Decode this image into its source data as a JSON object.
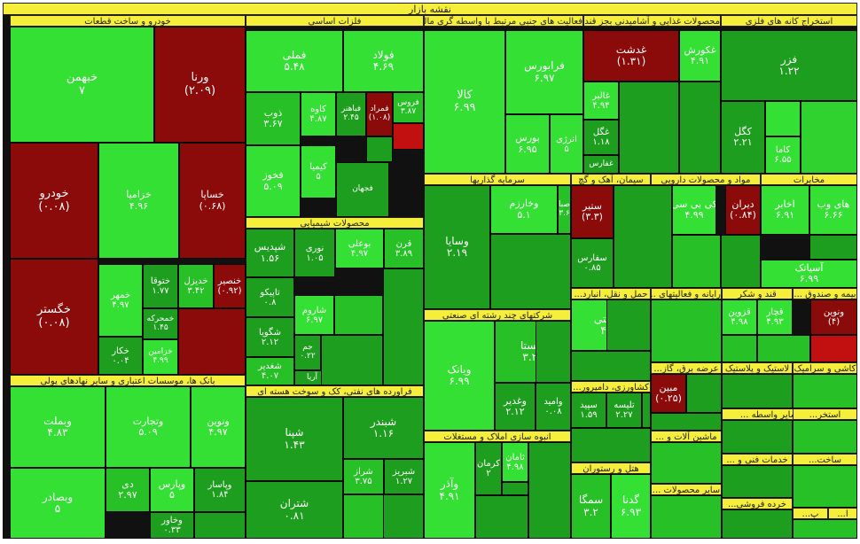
{
  "title": "نقشه بازار",
  "colors": {
    "strong_up": "#35e035",
    "up": "#1e9e1e",
    "mid_up": "#27c027",
    "down": "#8b0a0a",
    "header": "#f5ee3a"
  },
  "chart_data": {
    "type": "treemap",
    "title": "نقشه بازار",
    "sectors": [
      {
        "name": "خودرو و ساخت قطعات"
      },
      {
        "name": "فلزات اساسی"
      },
      {
        "name": "فعالیت های جنبی مرتبط با واسطه گری مالی"
      },
      {
        "name": "محصولات غذایی و آشامیدنی بجز قند..."
      },
      {
        "name": "استخراج کانه های فلزی"
      },
      {
        "name": "محصولات شیمیایی"
      },
      {
        "name": "سرمایه گذاریها"
      },
      {
        "name": "سیمان، آهک و گچ"
      },
      {
        "name": "مواد و محصولات دارویی"
      },
      {
        "name": "مخابرات"
      },
      {
        "name": "بانک ها، موسسات اعتباری و سایر نهادهای پولی"
      },
      {
        "name": "فراورده های نفتی، کک و سوخت هسته ای"
      },
      {
        "name": "شرکتهای چند رشته ای صنعتی"
      },
      {
        "name": "انبوه سازی املاک و مستغلات"
      },
      {
        "name": "حمل و نقل، انبارد..."
      },
      {
        "name": "رایانه و فعالیتهای ..."
      },
      {
        "name": "قند و شکر"
      },
      {
        "name": "بیمه و صندوق ..."
      },
      {
        "name": "عرضه برق، گاز..."
      },
      {
        "name": "لاستیک و پلاستیک"
      },
      {
        "name": "کاشی و سرامیک"
      },
      {
        "name": "کشاورزی، دامپرور..."
      },
      {
        "name": "ماشین آلات و ..."
      },
      {
        "name": "هتل و رستوران"
      },
      {
        "name": "سایر محصولات ..."
      },
      {
        "name": "ماشین آ... سایر واسطه ..."
      },
      {
        "name": "استخر..."
      },
      {
        "name": "خدمات فنی و ..."
      },
      {
        "name": "ساخت..."
      },
      {
        "name": "خرده فروشی..."
      },
      {
        "name": "پ..."
      },
      {
        "name": "ا..."
      }
    ],
    "tiles": [
      {
        "name": "خبهمن",
        "value": "۷"
      },
      {
        "name": "ورنا",
        "value": "(۲.۰۹)"
      },
      {
        "name": "خودرو",
        "value": "(۰.۰۸)"
      },
      {
        "name": "خزامیا",
        "value": "۴.۹۶"
      },
      {
        "name": "خساپا",
        "value": "(۰.۶۸)"
      },
      {
        "name": "خگستر",
        "value": "(۰.۰۸)"
      },
      {
        "name": "خمهر",
        "value": "۴.۹۷"
      },
      {
        "name": "ختوقا",
        "value": "۱.۷۷"
      },
      {
        "name": "خدیزل",
        "value": "۳.۴۲"
      },
      {
        "name": "خنصیر",
        "value": "(۰.۹۲)"
      },
      {
        "name": "خکار",
        "value": "۰.۰۴"
      },
      {
        "name": "خمحرکه",
        "value": "۱.۴۵"
      },
      {
        "name": "خزامین",
        "value": "۴.۹۹"
      },
      {
        "name": "فملی",
        "value": "۵.۴۸"
      },
      {
        "name": "فولاد",
        "value": "۴.۶۹"
      },
      {
        "name": "ذوب",
        "value": "۳.۶۷"
      },
      {
        "name": "کاوه",
        "value": "۴.۸۷"
      },
      {
        "name": "فباهنر",
        "value": "۲.۴۵"
      },
      {
        "name": "فمراد",
        "value": "(۱.۰۸)"
      },
      {
        "name": "فروس",
        "value": "۳.۸۷"
      },
      {
        "name": "فخوز",
        "value": "۵.۰۹"
      },
      {
        "name": "کیمیا",
        "value": "۵"
      },
      {
        "name": "فجهان",
        "value": ""
      },
      {
        "name": "کالا",
        "value": "۶.۹۹"
      },
      {
        "name": "فرابورس",
        "value": "۶.۹۷"
      },
      {
        "name": "بورس",
        "value": "۶.۹۵"
      },
      {
        "name": "انرژی",
        "value": "۵"
      },
      {
        "name": "غدشت",
        "value": "(۱.۳۱)"
      },
      {
        "name": "غکورش",
        "value": "۴.۹۱"
      },
      {
        "name": "غالبر",
        "value": "۴.۹۴"
      },
      {
        "name": "غگل",
        "value": "۱.۱۸"
      },
      {
        "name": "غفارس",
        "value": ""
      },
      {
        "name": "فزر",
        "value": "۱.۲۲"
      },
      {
        "name": "کگل",
        "value": "۲.۲۱"
      },
      {
        "name": "کاما",
        "value": "۶.۵۵"
      },
      {
        "name": "شپدیس",
        "value": "۱.۵۶"
      },
      {
        "name": "نوری",
        "value": "۱.۰۵"
      },
      {
        "name": "بوعلی",
        "value": "۴.۹۷"
      },
      {
        "name": "قرن",
        "value": "۳.۸۹"
      },
      {
        "name": "تاپیکو",
        "value": "۰.۸"
      },
      {
        "name": "شگویا",
        "value": "۲.۱۲"
      },
      {
        "name": "شاروم",
        "value": "۶.۹۷"
      },
      {
        "name": "شغدیر",
        "value": "۴.۰۷"
      },
      {
        "name": "جم",
        "value": "۰.۲۲"
      },
      {
        "name": "آریا",
        "value": ""
      },
      {
        "name": "وسایا",
        "value": "۲.۱۹"
      },
      {
        "name": "وخارزم",
        "value": "۵.۱"
      },
      {
        "name": "صبا",
        "value": "۳.۶"
      },
      {
        "name": "ستیر",
        "value": "(۳.۳)"
      },
      {
        "name": "سفارس",
        "value": "۰.۸۵"
      },
      {
        "name": "کی بی سی",
        "value": "۴.۹۹"
      },
      {
        "name": "دیران",
        "value": "(۰.۸۴)"
      },
      {
        "name": "اخابر",
        "value": "۶.۹۱"
      },
      {
        "name": "های وب",
        "value": "۶.۶۶"
      },
      {
        "name": "آسیاتک",
        "value": "۶.۹۹"
      },
      {
        "name": "وبملت",
        "value": "۴.۸۳"
      },
      {
        "name": "وتجارت",
        "value": "۵.۰۹"
      },
      {
        "name": "ونوین",
        "value": "۴.۹۷"
      },
      {
        "name": "دی",
        "value": "۲.۹۷"
      },
      {
        "name": "وپارس",
        "value": "۵"
      },
      {
        "name": "وپاسار",
        "value": "۱.۸۴"
      },
      {
        "name": "وبصادر",
        "value": "۵"
      },
      {
        "name": "وخاور",
        "value": "۰.۳۳"
      },
      {
        "name": "شپنا",
        "value": "۱.۴۳"
      },
      {
        "name": "شبندر",
        "value": "۱.۱۶"
      },
      {
        "name": "شتران",
        "value": "۰.۸۱"
      },
      {
        "name": "شبریز",
        "value": "۱.۲۷"
      },
      {
        "name": "شراز",
        "value": "۳.۷۵"
      },
      {
        "name": "وبانک",
        "value": "۶.۹۹"
      },
      {
        "name": "شستا",
        "value": "۳.۲۶"
      },
      {
        "name": "وغدیر",
        "value": "۲.۱۲"
      },
      {
        "name": "وامید",
        "value": "۰.۰۸"
      },
      {
        "name": "وآذر",
        "value": "۴.۹۱"
      },
      {
        "name": "کرمان",
        "value": "۲"
      },
      {
        "name": "ثامان",
        "value": "۴.۹۸"
      },
      {
        "name": "حکشتی",
        "value": "۴.۹۸"
      },
      {
        "name": "سپید",
        "value": "۱.۵۹"
      },
      {
        "name": "تلیسه",
        "value": "۲.۲۷"
      },
      {
        "name": "سمگا",
        "value": "۳.۲"
      },
      {
        "name": "گدنا",
        "value": "۶.۹۳"
      },
      {
        "name": "مبین",
        "value": "(۰.۲۵)"
      },
      {
        "name": "قزوین",
        "value": "۴.۹۸"
      },
      {
        "name": "قچار",
        "value": "۴.۹۳"
      },
      {
        "name": "ونوین",
        "value": "(۴)"
      }
    ]
  }
}
